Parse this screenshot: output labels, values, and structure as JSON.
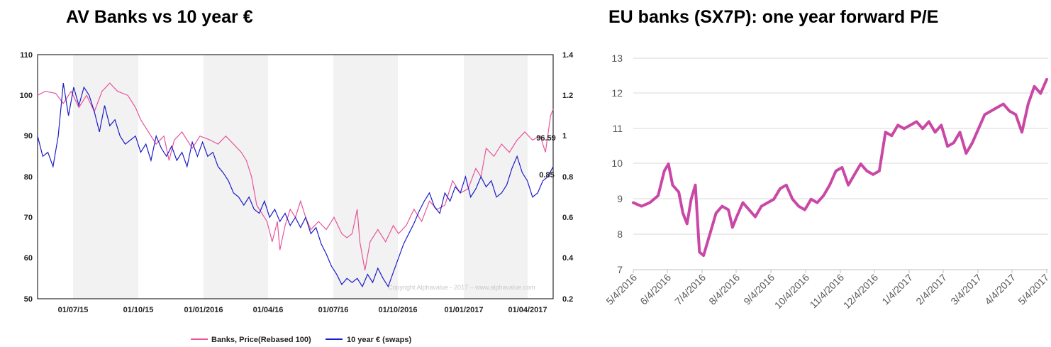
{
  "chart_data": [
    {
      "type": "line",
      "title": "AV Banks vs 10 year €",
      "x_tick_labels": [
        "01/07/15",
        "01/10/15",
        "01/01/2016",
        "01/04/16",
        "01/07/16",
        "01/10/2016",
        "01/01/2017",
        "01/04/2017"
      ],
      "y_left": {
        "ticks": [
          "110",
          "100",
          "90",
          "80",
          "70",
          "60",
          "50"
        ],
        "range": [
          50,
          110
        ]
      },
      "y_right": {
        "ticks": [
          "1.4",
          "1.2",
          "1",
          "0.8",
          "0.6",
          "0.4",
          "0.2"
        ],
        "range": [
          0.2,
          1.4
        ]
      },
      "watermark": "Copyright Alphavalue - 2017 – www.alphavalue.com",
      "series": [
        {
          "name": "Banks, Price(Rebased 100)",
          "axis": "left",
          "color": "#e8559a",
          "end_label": "96.59",
          "points": [
            [
              0,
              100
            ],
            [
              0.015,
              101
            ],
            [
              0.035,
              100.5
            ],
            [
              0.05,
              98
            ],
            [
              0.065,
              101
            ],
            [
              0.08,
              97
            ],
            [
              0.095,
              100
            ],
            [
              0.11,
              96
            ],
            [
              0.125,
              101
            ],
            [
              0.14,
              103
            ],
            [
              0.155,
              101
            ],
            [
              0.175,
              100
            ],
            [
              0.19,
              97
            ],
            [
              0.2,
              94
            ],
            [
              0.215,
              91
            ],
            [
              0.23,
              88
            ],
            [
              0.245,
              90
            ],
            [
              0.255,
              84
            ],
            [
              0.265,
              89
            ],
            [
              0.28,
              91
            ],
            [
              0.3,
              87
            ],
            [
              0.315,
              90
            ],
            [
              0.335,
              89
            ],
            [
              0.35,
              88
            ],
            [
              0.365,
              90
            ],
            [
              0.38,
              88
            ],
            [
              0.395,
              86
            ],
            [
              0.405,
              84
            ],
            [
              0.415,
              80
            ],
            [
              0.425,
              73
            ],
            [
              0.435,
              71
            ],
            [
              0.445,
              69
            ],
            [
              0.455,
              64
            ],
            [
              0.465,
              69
            ],
            [
              0.47,
              62
            ],
            [
              0.48,
              68
            ],
            [
              0.49,
              72
            ],
            [
              0.5,
              70
            ],
            [
              0.51,
              74
            ],
            [
              0.52,
              70
            ],
            [
              0.53,
              67
            ],
            [
              0.545,
              69
            ],
            [
              0.56,
              67
            ],
            [
              0.575,
              70
            ],
            [
              0.59,
              66
            ],
            [
              0.6,
              65
            ],
            [
              0.61,
              66
            ],
            [
              0.62,
              72
            ],
            [
              0.625,
              64
            ],
            [
              0.635,
              57
            ],
            [
              0.645,
              64
            ],
            [
              0.66,
              67
            ],
            [
              0.675,
              64
            ],
            [
              0.69,
              68
            ],
            [
              0.7,
              66
            ],
            [
              0.715,
              68
            ],
            [
              0.73,
              72
            ],
            [
              0.745,
              69
            ],
            [
              0.76,
              74
            ],
            [
              0.775,
              72
            ],
            [
              0.79,
              73
            ],
            [
              0.805,
              79
            ],
            [
              0.82,
              76
            ],
            [
              0.835,
              77
            ],
            [
              0.85,
              82
            ],
            [
              0.86,
              80
            ],
            [
              0.87,
              87
            ],
            [
              0.885,
              85
            ],
            [
              0.9,
              88
            ],
            [
              0.915,
              86
            ],
            [
              0.93,
              89
            ],
            [
              0.945,
              91
            ],
            [
              0.96,
              89
            ],
            [
              0.975,
              90
            ],
            [
              0.985,
              86
            ],
            [
              0.995,
              95
            ],
            [
              1.0,
              96.6
            ]
          ]
        },
        {
          "name": "10 year € (swaps)",
          "axis": "right",
          "color": "#1c1cc8",
          "end_label": "0.85",
          "points": [
            [
              0,
              1.0
            ],
            [
              0.01,
              0.9
            ],
            [
              0.02,
              0.92
            ],
            [
              0.03,
              0.85
            ],
            [
              0.04,
              1.0
            ],
            [
              0.05,
              1.26
            ],
            [
              0.06,
              1.1
            ],
            [
              0.07,
              1.24
            ],
            [
              0.08,
              1.15
            ],
            [
              0.09,
              1.24
            ],
            [
              0.1,
              1.2
            ],
            [
              0.11,
              1.12
            ],
            [
              0.12,
              1.02
            ],
            [
              0.13,
              1.15
            ],
            [
              0.14,
              1.05
            ],
            [
              0.15,
              1.08
            ],
            [
              0.16,
              1.0
            ],
            [
              0.17,
              0.96
            ],
            [
              0.18,
              0.98
            ],
            [
              0.19,
              1.0
            ],
            [
              0.2,
              0.92
            ],
            [
              0.21,
              0.96
            ],
            [
              0.22,
              0.88
            ],
            [
              0.23,
              1.0
            ],
            [
              0.24,
              0.94
            ],
            [
              0.25,
              0.9
            ],
            [
              0.26,
              0.95
            ],
            [
              0.27,
              0.88
            ],
            [
              0.28,
              0.92
            ],
            [
              0.29,
              0.85
            ],
            [
              0.3,
              0.97
            ],
            [
              0.31,
              0.9
            ],
            [
              0.32,
              0.97
            ],
            [
              0.33,
              0.9
            ],
            [
              0.34,
              0.92
            ],
            [
              0.35,
              0.85
            ],
            [
              0.36,
              0.82
            ],
            [
              0.37,
              0.78
            ],
            [
              0.38,
              0.72
            ],
            [
              0.39,
              0.7
            ],
            [
              0.4,
              0.66
            ],
            [
              0.41,
              0.7
            ],
            [
              0.42,
              0.64
            ],
            [
              0.43,
              0.62
            ],
            [
              0.44,
              0.68
            ],
            [
              0.45,
              0.6
            ],
            [
              0.46,
              0.64
            ],
            [
              0.47,
              0.58
            ],
            [
              0.48,
              0.62
            ],
            [
              0.49,
              0.56
            ],
            [
              0.5,
              0.6
            ],
            [
              0.51,
              0.55
            ],
            [
              0.52,
              0.6
            ],
            [
              0.53,
              0.52
            ],
            [
              0.54,
              0.55
            ],
            [
              0.55,
              0.47
            ],
            [
              0.56,
              0.42
            ],
            [
              0.57,
              0.36
            ],
            [
              0.58,
              0.32
            ],
            [
              0.59,
              0.27
            ],
            [
              0.6,
              0.3
            ],
            [
              0.61,
              0.28
            ],
            [
              0.62,
              0.3
            ],
            [
              0.63,
              0.26
            ],
            [
              0.64,
              0.32
            ],
            [
              0.65,
              0.28
            ],
            [
              0.66,
              0.35
            ],
            [
              0.67,
              0.3
            ],
            [
              0.68,
              0.26
            ],
            [
              0.69,
              0.33
            ],
            [
              0.7,
              0.4
            ],
            [
              0.71,
              0.47
            ],
            [
              0.72,
              0.52
            ],
            [
              0.73,
              0.57
            ],
            [
              0.74,
              0.63
            ],
            [
              0.75,
              0.68
            ],
            [
              0.76,
              0.72
            ],
            [
              0.77,
              0.65
            ],
            [
              0.78,
              0.62
            ],
            [
              0.79,
              0.72
            ],
            [
              0.8,
              0.68
            ],
            [
              0.81,
              0.75
            ],
            [
              0.82,
              0.72
            ],
            [
              0.83,
              0.8
            ],
            [
              0.84,
              0.7
            ],
            [
              0.85,
              0.74
            ],
            [
              0.86,
              0.8
            ],
            [
              0.87,
              0.75
            ],
            [
              0.88,
              0.78
            ],
            [
              0.89,
              0.7
            ],
            [
              0.9,
              0.72
            ],
            [
              0.91,
              0.76
            ],
            [
              0.92,
              0.84
            ],
            [
              0.93,
              0.9
            ],
            [
              0.94,
              0.82
            ],
            [
              0.95,
              0.78
            ],
            [
              0.96,
              0.7
            ],
            [
              0.97,
              0.72
            ],
            [
              0.98,
              0.78
            ],
            [
              0.99,
              0.8
            ],
            [
              1.0,
              0.85
            ]
          ]
        }
      ]
    },
    {
      "type": "line",
      "title": "EU banks (SX7P): one year forward P/E",
      "x_tick_labels": [
        "5/4/2016",
        "6/4/2016",
        "7/4/2016",
        "8/4/2016",
        "9/4/2016",
        "10/4/2016",
        "11/4/2016",
        "12/4/2016",
        "1/4/2017",
        "2/4/2017",
        "3/4/2017",
        "4/4/2017",
        "5/4/2017"
      ],
      "y_ticks": [
        "13",
        "12",
        "11",
        "10",
        "9",
        "8",
        "7"
      ],
      "ylim": [
        7,
        13
      ],
      "series": [
        {
          "name": "SX7P one year forward P/E",
          "color": "#c948a6",
          "points": [
            [
              0,
              8.9
            ],
            [
              0.02,
              8.8
            ],
            [
              0.04,
              8.9
            ],
            [
              0.06,
              9.1
            ],
            [
              0.075,
              9.8
            ],
            [
              0.085,
              10.0
            ],
            [
              0.095,
              9.4
            ],
            [
              0.11,
              9.2
            ],
            [
              0.12,
              8.6
            ],
            [
              0.13,
              8.3
            ],
            [
              0.14,
              9.0
            ],
            [
              0.15,
              9.4
            ],
            [
              0.16,
              7.5
            ],
            [
              0.17,
              7.4
            ],
            [
              0.18,
              7.8
            ],
            [
              0.19,
              8.2
            ],
            [
              0.2,
              8.6
            ],
            [
              0.215,
              8.8
            ],
            [
              0.23,
              8.7
            ],
            [
              0.24,
              8.2
            ],
            [
              0.25,
              8.5
            ],
            [
              0.265,
              8.9
            ],
            [
              0.28,
              8.7
            ],
            [
              0.295,
              8.5
            ],
            [
              0.31,
              8.8
            ],
            [
              0.325,
              8.9
            ],
            [
              0.34,
              9.0
            ],
            [
              0.355,
              9.3
            ],
            [
              0.37,
              9.4
            ],
            [
              0.385,
              9.0
            ],
            [
              0.4,
              8.8
            ],
            [
              0.415,
              8.7
            ],
            [
              0.43,
              9.0
            ],
            [
              0.445,
              8.9
            ],
            [
              0.46,
              9.1
            ],
            [
              0.475,
              9.4
            ],
            [
              0.49,
              9.8
            ],
            [
              0.505,
              9.9
            ],
            [
              0.52,
              9.4
            ],
            [
              0.535,
              9.7
            ],
            [
              0.55,
              10.0
            ],
            [
              0.565,
              9.8
            ],
            [
              0.58,
              9.7
            ],
            [
              0.595,
              9.8
            ],
            [
              0.61,
              10.9
            ],
            [
              0.625,
              10.8
            ],
            [
              0.64,
              11.1
            ],
            [
              0.655,
              11.0
            ],
            [
              0.67,
              11.1
            ],
            [
              0.685,
              11.2
            ],
            [
              0.7,
              11.0
            ],
            [
              0.715,
              11.2
            ],
            [
              0.73,
              10.9
            ],
            [
              0.745,
              11.1
            ],
            [
              0.76,
              10.5
            ],
            [
              0.775,
              10.6
            ],
            [
              0.79,
              10.9
            ],
            [
              0.805,
              10.3
            ],
            [
              0.82,
              10.6
            ],
            [
              0.835,
              11.0
            ],
            [
              0.85,
              11.4
            ],
            [
              0.865,
              11.5
            ],
            [
              0.88,
              11.6
            ],
            [
              0.895,
              11.7
            ],
            [
              0.91,
              11.5
            ],
            [
              0.925,
              11.4
            ],
            [
              0.94,
              10.9
            ],
            [
              0.955,
              11.7
            ],
            [
              0.97,
              12.2
            ],
            [
              0.985,
              12.0
            ],
            [
              1.0,
              12.4
            ]
          ]
        }
      ]
    }
  ]
}
